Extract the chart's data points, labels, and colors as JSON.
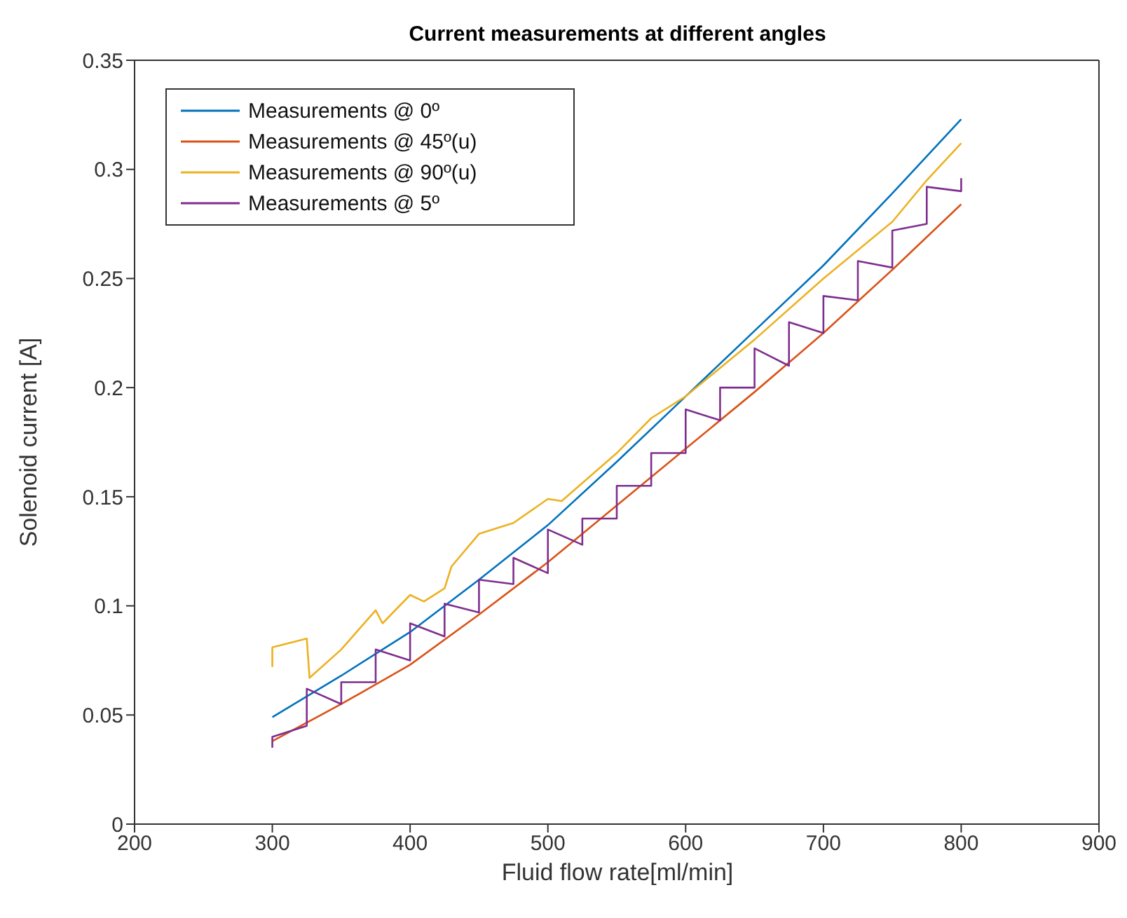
{
  "chart_data": {
    "type": "line",
    "title": "Current measurements at different angles",
    "xlabel": "Fluid flow rate[ml/min]",
    "ylabel": "Solenoid current [A]",
    "xlim": [
      200,
      900
    ],
    "xticks": [
      200,
      300,
      400,
      500,
      600,
      700,
      800,
      900
    ],
    "ylim": [
      0,
      0.35
    ],
    "yticks": [
      0,
      0.05,
      0.1,
      0.15,
      0.2,
      0.25,
      0.3,
      0.35
    ],
    "grid": false,
    "legend": "top left",
    "marker": "none",
    "line_style": "solid",
    "series": [
      {
        "name": "Measurements @ 0º",
        "color": "#0072bd",
        "x": [
          300,
          350,
          400,
          450,
          500,
          550,
          600,
          650,
          700,
          750,
          800
        ],
        "values": [
          0.049,
          0.068,
          0.088,
          0.112,
          0.137,
          0.166,
          0.196,
          0.226,
          0.256,
          0.289,
          0.323
        ]
      },
      {
        "name": "Measurements @ 45º(u)",
        "color": "#d95319",
        "x": [
          300,
          350,
          400,
          450,
          500,
          550,
          600,
          650,
          700,
          750,
          800
        ],
        "values": [
          0.038,
          0.055,
          0.073,
          0.096,
          0.12,
          0.146,
          0.172,
          0.198,
          0.225,
          0.254,
          0.284
        ]
      },
      {
        "name": "Measurements @ 90º(u)",
        "color": "#edb120",
        "x": [
          300,
          300,
          325,
          327,
          350,
          375,
          380,
          400,
          410,
          425,
          430,
          450,
          475,
          500,
          510,
          550,
          575,
          600,
          650,
          700,
          750,
          775,
          800
        ],
        "values": [
          0.072,
          0.081,
          0.085,
          0.067,
          0.08,
          0.098,
          0.092,
          0.105,
          0.102,
          0.108,
          0.118,
          0.133,
          0.138,
          0.149,
          0.148,
          0.17,
          0.186,
          0.196,
          0.222,
          0.25,
          0.276,
          0.295,
          0.312
        ]
      },
      {
        "name": "Measurements @ 5º",
        "color": "#7e2f8e",
        "x": [
          300,
          300,
          325,
          325,
          350,
          350,
          375,
          375,
          400,
          400,
          425,
          425,
          450,
          450,
          475,
          475,
          500,
          500,
          525,
          525,
          550,
          550,
          575,
          575,
          600,
          600,
          625,
          625,
          650,
          650,
          675,
          675,
          700,
          700,
          725,
          725,
          750,
          750,
          775,
          775,
          800,
          800
        ],
        "values": [
          0.035,
          0.04,
          0.045,
          0.062,
          0.055,
          0.065,
          0.065,
          0.08,
          0.075,
          0.092,
          0.086,
          0.101,
          0.097,
          0.112,
          0.11,
          0.122,
          0.115,
          0.135,
          0.128,
          0.14,
          0.14,
          0.155,
          0.155,
          0.17,
          0.17,
          0.19,
          0.185,
          0.2,
          0.2,
          0.218,
          0.21,
          0.23,
          0.225,
          0.242,
          0.24,
          0.258,
          0.255,
          0.272,
          0.275,
          0.292,
          0.29,
          0.296
        ]
      }
    ]
  }
}
